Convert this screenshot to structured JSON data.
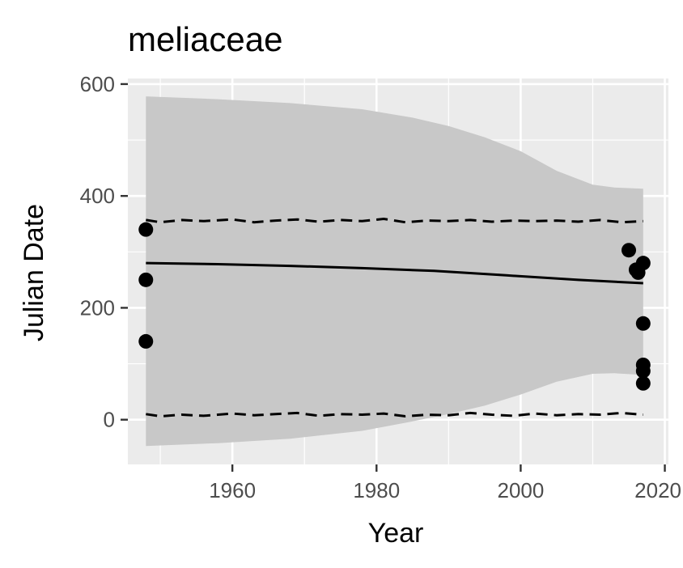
{
  "chart_data": {
    "type": "scatter",
    "title": "meliaceae",
    "xlabel": "Year",
    "ylabel": "Julian Date",
    "xlim": [
      1945.5,
      2020.5
    ],
    "ylim": [
      -80,
      610
    ],
    "x_ticks": [
      1960,
      1980,
      2000,
      2020
    ],
    "y_ticks": [
      0,
      200,
      400,
      600
    ],
    "x_tick_labels": [
      "1960",
      "1980",
      "2000",
      "2020"
    ],
    "y_tick_labels": [
      "0",
      "200",
      "400",
      "600"
    ],
    "grid": true,
    "colors": {
      "panel": "#ebebeb",
      "grid": "#ffffff",
      "ribbon": "#c8c8c8",
      "line": "#000000",
      "points": "#000000"
    },
    "points": [
      {
        "x": 1948,
        "y": 340
      },
      {
        "x": 1948,
        "y": 250
      },
      {
        "x": 1948,
        "y": 140
      },
      {
        "x": 2015,
        "y": 303
      },
      {
        "x": 2016,
        "y": 268
      },
      {
        "x": 2016.3,
        "y": 263
      },
      {
        "x": 2017,
        "y": 280
      },
      {
        "x": 2017,
        "y": 172
      },
      {
        "x": 2017,
        "y": 98
      },
      {
        "x": 2017,
        "y": 87
      },
      {
        "x": 2017,
        "y": 65
      }
    ],
    "fit": {
      "x": [
        1948,
        1958,
        1968,
        1978,
        1988,
        1998,
        2008,
        2017
      ],
      "y": [
        280,
        278,
        275,
        271,
        266,
        258,
        250,
        244
      ]
    },
    "ribbon": {
      "x": [
        1948,
        1958,
        1968,
        1978,
        1985,
        1990,
        1995,
        2000,
        2005,
        2010,
        2013,
        2017
      ],
      "upper": [
        578,
        573,
        566,
        555,
        540,
        525,
        505,
        480,
        445,
        420,
        415,
        413
      ],
      "lower": [
        -47,
        -42,
        -34,
        -20,
        -3,
        10,
        25,
        45,
        68,
        82,
        83,
        80
      ]
    },
    "dashed_upper": {
      "x": [
        1948,
        1950,
        1953,
        1956,
        1960,
        1963,
        1966,
        1969,
        1972,
        1975,
        1978,
        1981,
        1984,
        1987,
        1990,
        1993,
        1996,
        1999,
        2002,
        2005,
        2008,
        2011,
        2014,
        2017
      ],
      "y": [
        357,
        353,
        357,
        355,
        358,
        353,
        356,
        358,
        354,
        357,
        355,
        359,
        353,
        356,
        355,
        357,
        354,
        356,
        355,
        356,
        354,
        357,
        353,
        355
      ]
    },
    "dashed_lower": {
      "x": [
        1948,
        1950,
        1953,
        1956,
        1960,
        1963,
        1966,
        1969,
        1972,
        1975,
        1978,
        1981,
        1984,
        1987,
        1990,
        1993,
        1996,
        1999,
        2002,
        2005,
        2008,
        2011,
        2014,
        2017
      ],
      "y": [
        10,
        6,
        9,
        7,
        11,
        8,
        10,
        12,
        7,
        10,
        9,
        11,
        6,
        9,
        8,
        12,
        9,
        7,
        11,
        8,
        10,
        9,
        12,
        9
      ]
    }
  }
}
